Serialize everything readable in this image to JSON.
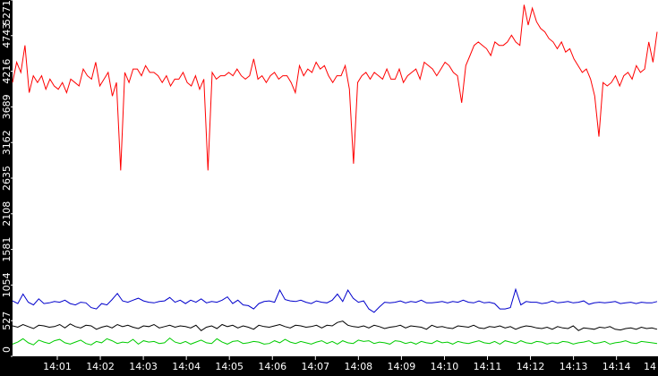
{
  "chart_data": {
    "type": "line",
    "title": "",
    "xlabel": "",
    "ylabel": "",
    "background": "#000000",
    "plot_background": "#ffffff",
    "grid": false,
    "ylim": [
      0,
      5271
    ],
    "y_ticks": [
      "0",
      "527",
      "1054",
      "1581",
      "2108",
      "2635",
      "3162",
      "3689",
      "4216",
      "4743",
      "5271"
    ],
    "x_ticks": [
      "14:01",
      "14:02",
      "14:03",
      "14:04",
      "14:05",
      "14:06",
      "14:07",
      "14:08",
      "14:09",
      "14:10",
      "14:11",
      "14:12",
      "14:13",
      "14:14",
      "14"
    ],
    "series": [
      {
        "color": "#ff0000",
        "values": [
          4050,
          4350,
          4200,
          4600,
          3900,
          4150,
          4050,
          4150,
          3950,
          4100,
          4000,
          3950,
          4050,
          3900,
          4100,
          4050,
          4000,
          4250,
          4150,
          4100,
          4350,
          4000,
          4100,
          4200,
          3850,
          4050,
          2750,
          4200,
          4050,
          4250,
          4250,
          4150,
          4300,
          4200,
          4200,
          4150,
          4050,
          4150,
          4000,
          4100,
          4100,
          4200,
          4050,
          4000,
          4150,
          3950,
          4100,
          2750,
          4200,
          4100,
          4150,
          4150,
          4200,
          4150,
          4250,
          4150,
          4100,
          4150,
          4400,
          4100,
          4150,
          4050,
          4150,
          4200,
          4100,
          4150,
          4150,
          4050,
          3900,
          4300,
          4150,
          4250,
          4200,
          4350,
          4250,
          4300,
          4150,
          4050,
          4150,
          4150,
          4300,
          3950,
          2850,
          4050,
          4150,
          4200,
          4100,
          4200,
          4150,
          4100,
          4250,
          4100,
          4100,
          4250,
          4050,
          4150,
          4200,
          4250,
          4100,
          4350,
          4300,
          4250,
          4150,
          4250,
          4350,
          4300,
          4200,
          4150,
          3750,
          4300,
          4450,
          4600,
          4650,
          4600,
          4550,
          4450,
          4650,
          4600,
          4600,
          4650,
          4750,
          4650,
          4600,
          5200,
          4900,
          5150,
          4950,
          4850,
          4800,
          4700,
          4650,
          4550,
          4650,
          4500,
          4550,
          4400,
          4300,
          4200,
          4250,
          4100,
          3850,
          3250,
          4050,
          4000,
          4050,
          4150,
          4000,
          4150,
          4200,
          4100,
          4300,
          4200,
          4250,
          4650,
          4350,
          4800
        ]
      },
      {
        "color": "#0000cc",
        "values": [
          820,
          780,
          920,
          800,
          760,
          850,
          780,
          790,
          810,
          800,
          830,
          780,
          760,
          800,
          790,
          720,
          700,
          780,
          760,
          840,
          930,
          820,
          800,
          830,
          860,
          820,
          800,
          790,
          810,
          820,
          870,
          800,
          830,
          780,
          830,
          800,
          850,
          790,
          810,
          800,
          830,
          880,
          780,
          830,
          760,
          750,
          700,
          780,
          810,
          820,
          800,
          980,
          840,
          820,
          810,
          830,
          800,
          780,
          820,
          800,
          790,
          830,
          920,
          810,
          980,
          860,
          800,
          820,
          700,
          650,
          730,
          800,
          790,
          800,
          820,
          790,
          810,
          800,
          830,
          790,
          790,
          800,
          810,
          790,
          810,
          800,
          830,
          800,
          790,
          820,
          790,
          800,
          780,
          700,
          700,
          720,
          990,
          760,
          810,
          800,
          800,
          780,
          790,
          820,
          790,
          800,
          810,
          790,
          800,
          820,
          770,
          790,
          800,
          790,
          800,
          810,
          780,
          790,
          800,
          780,
          800,
          790,
          790,
          810
        ]
      },
      {
        "color": "#000000",
        "values": [
          450,
          430,
          470,
          440,
          410,
          460,
          450,
          430,
          440,
          470,
          420,
          480,
          440,
          420,
          460,
          450,
          400,
          430,
          450,
          420,
          470,
          440,
          460,
          430,
          410,
          450,
          440,
          470,
          420,
          440,
          460,
          430,
          450,
          440,
          420,
          460,
          380,
          430,
          450,
          410,
          470,
          440,
          460,
          420,
          450,
          430,
          400,
          460,
          440,
          430,
          450,
          470,
          440,
          420,
          460,
          450,
          430,
          440,
          460,
          420,
          460,
          450,
          500,
          520,
          460,
          440,
          430,
          450,
          420,
          460,
          440,
          410,
          430,
          440,
          460,
          420,
          450,
          440,
          430,
          400,
          460,
          430,
          440,
          420,
          410,
          450,
          440,
          430,
          460,
          420,
          410,
          440,
          430,
          450,
          420,
          440,
          400,
          430,
          450,
          440,
          420,
          410,
          430,
          400,
          440,
          420,
          410,
          450,
          380,
          420,
          410,
          400,
          430,
          420,
          440,
          400,
          390,
          410,
          420,
          400,
          430,
          410,
          420,
          400
        ]
      },
      {
        "color": "#00cc00",
        "values": [
          180,
          210,
          260,
          200,
          170,
          240,
          210,
          190,
          230,
          250,
          200,
          180,
          210,
          240,
          190,
          170,
          220,
          200,
          260,
          230,
          190,
          210,
          200,
          250,
          180,
          230,
          210,
          220,
          190,
          200,
          270,
          210,
          190,
          220,
          180,
          210,
          240,
          200,
          190,
          260,
          210,
          180,
          220,
          230,
          190,
          200,
          220,
          210,
          180,
          190,
          230,
          200,
          250,
          210,
          190,
          220,
          200,
          180,
          210,
          230,
          190,
          220,
          180,
          230,
          200,
          190,
          240,
          220,
          230,
          190,
          210,
          200,
          180,
          230,
          220,
          190,
          210,
          180,
          220,
          200,
          190,
          230,
          200,
          210,
          180,
          220,
          200,
          190,
          210,
          230,
          200,
          190,
          220,
          180,
          230,
          210,
          190,
          230,
          200,
          190,
          220,
          210,
          180,
          200,
          190,
          220,
          210,
          180,
          200,
          210,
          230,
          190,
          200,
          220,
          180,
          200,
          210,
          230,
          200,
          190,
          220,
          210,
          200,
          190
        ]
      }
    ]
  }
}
